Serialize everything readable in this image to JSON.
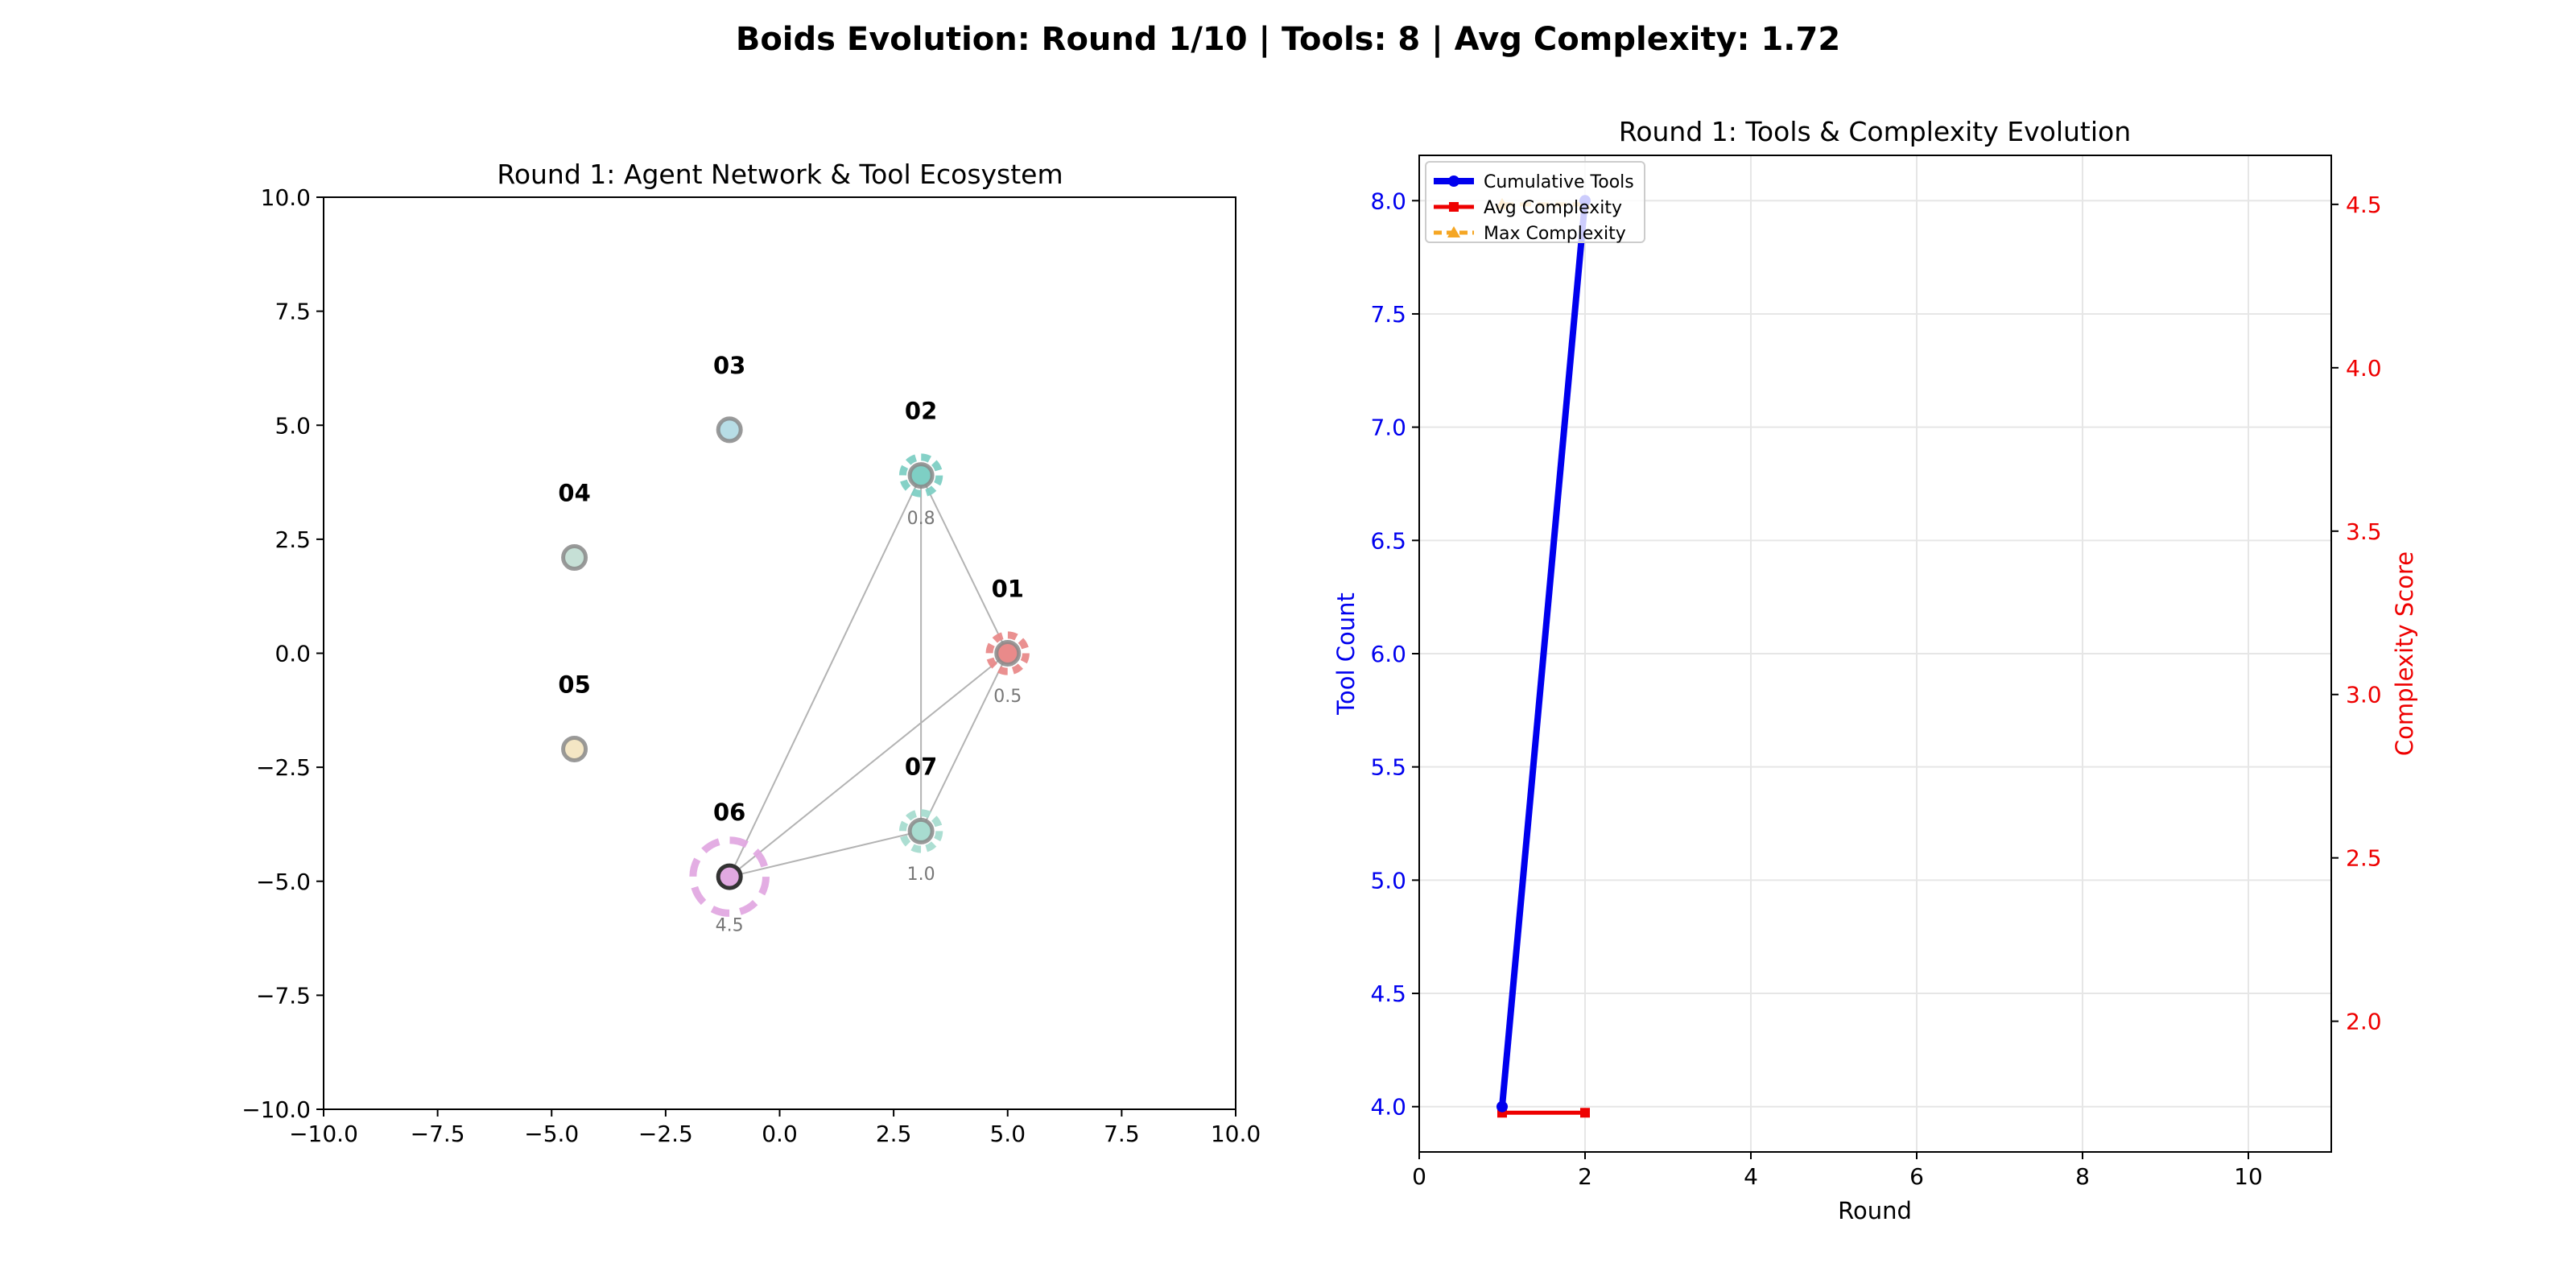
{
  "suptitle": "Boids Evolution: Round 1/10 | Tools: 8 | Avg Complexity: 1.72",
  "colors": {
    "tools": "#0000ee",
    "avg": "#ee0000",
    "max": "#f5a623",
    "edge": "#b3b3b3",
    "grid": "#e6e6e6"
  },
  "chart_data": [
    {
      "type": "scatter",
      "title": "Round 1: Agent Network & Tool Ecosystem",
      "xlim": [
        -10,
        10
      ],
      "ylim": [
        -10,
        10
      ],
      "xticks": [
        "−10.0",
        "−7.5",
        "−5.0",
        "−2.5",
        "0.0",
        "2.5",
        "5.0",
        "7.5",
        "10.0"
      ],
      "yticks": [
        "−10.0",
        "−7.5",
        "−5.0",
        "−2.5",
        "0.0",
        "2.5",
        "5.0",
        "7.5",
        "10.0"
      ],
      "grid": false,
      "agents": [
        {
          "id": "01",
          "x": 5.0,
          "y": 0.0,
          "color": "#e98a8a",
          "ring": true,
          "ring_r": 0.4,
          "score": "0.5"
        },
        {
          "id": "02",
          "x": 3.1,
          "y": 3.9,
          "color": "#7ecfc4",
          "ring": true,
          "ring_r": 0.4,
          "score": "0.8"
        },
        {
          "id": "03",
          "x": -1.1,
          "y": 4.9,
          "color": "#b7dde6",
          "ring": false
        },
        {
          "id": "04",
          "x": -4.5,
          "y": 2.1,
          "color": "#c6e0d6",
          "ring": false
        },
        {
          "id": "05",
          "x": -4.5,
          "y": -2.1,
          "color": "#f4e6c4",
          "ring": false
        },
        {
          "id": "06",
          "x": -1.1,
          "y": -4.9,
          "color": "#e1a9e1",
          "ring": true,
          "ring_r": 0.8,
          "score": "4.5"
        },
        {
          "id": "07",
          "x": 3.1,
          "y": -3.9,
          "color": "#a8dcd0",
          "ring": true,
          "ring_r": 0.4,
          "score": "1.0"
        }
      ],
      "edges": [
        [
          "01",
          "02"
        ],
        [
          "01",
          "07"
        ],
        [
          "01",
          "06"
        ],
        [
          "02",
          "07"
        ],
        [
          "02",
          "06"
        ],
        [
          "06",
          "07"
        ]
      ]
    },
    {
      "type": "line",
      "title": "Round 1: Tools & Complexity Evolution",
      "xlabel": "Round",
      "ylabel": "Tool Count",
      "ylabel_right": "Complexity Score",
      "xlim": [
        0,
        11
      ],
      "ylim": [
        3.8,
        8.2
      ],
      "ylim_right": [
        1.6,
        4.65
      ],
      "xticks": [
        0,
        2,
        4,
        6,
        8,
        10
      ],
      "yticks": [
        "4.0",
        "4.5",
        "5.0",
        "5.5",
        "6.0",
        "6.5",
        "7.0",
        "7.5",
        "8.0"
      ],
      "yticks_right": [
        "2.0",
        "2.5",
        "3.0",
        "3.5",
        "4.0",
        "4.5"
      ],
      "grid": true,
      "legend_position": "upper-left",
      "x": [
        1,
        2
      ],
      "series": [
        {
          "name": "Cumulative Tools",
          "axis": "left",
          "values": [
            4,
            8
          ],
          "color": "#0000ee",
          "marker": "circle"
        },
        {
          "name": "Avg Complexity",
          "axis": "right",
          "values": [
            1.72,
            1.72
          ],
          "color": "#ee0000",
          "marker": "square"
        },
        {
          "name": "Max Complexity",
          "axis": "right",
          "values": [
            4.5,
            4.5
          ],
          "color": "#f5a623",
          "marker": "triangle"
        }
      ]
    }
  ]
}
